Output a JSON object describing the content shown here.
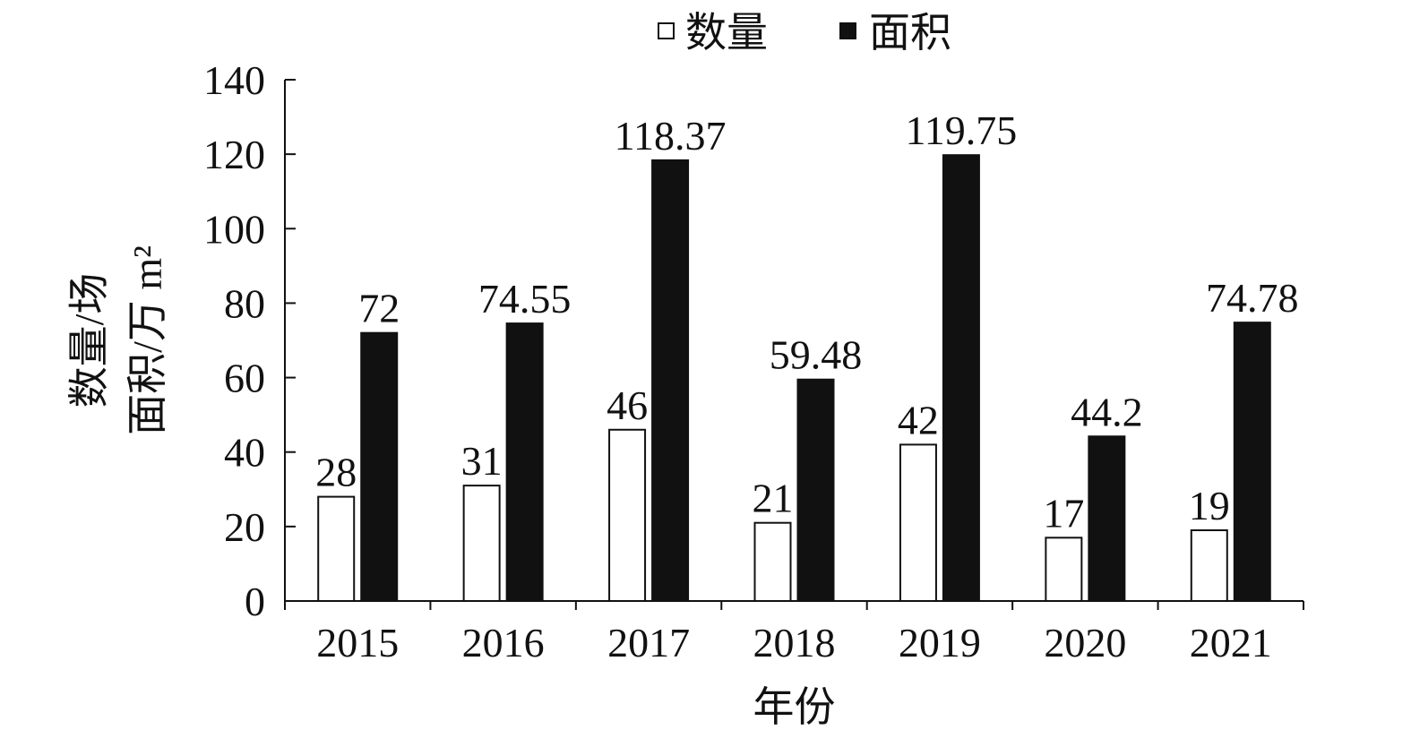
{
  "chart_data": {
    "type": "bar",
    "categories": [
      "2015",
      "2016",
      "2017",
      "2018",
      "2019",
      "2020",
      "2021"
    ],
    "series": [
      {
        "name": "数量",
        "values": [
          28,
          31,
          46,
          21,
          42,
          17,
          19
        ],
        "labels": [
          "28",
          "31",
          "46",
          "21",
          "42",
          "17",
          "19"
        ],
        "fill": "#ffffff",
        "stroke": "#111111"
      },
      {
        "name": "面积",
        "values": [
          72,
          74.55,
          118.37,
          59.48,
          119.75,
          44.2,
          74.78
        ],
        "labels": [
          "72",
          "74.55",
          "118.37",
          "59.48",
          "119.75",
          "44.2",
          "74.78"
        ],
        "fill": "#111111",
        "stroke": "#111111"
      }
    ],
    "xlabel": "年份",
    "ylabel_lines": [
      "数量/场",
      "面积/万 m²"
    ],
    "ylim": [
      0,
      140
    ],
    "yticks": [
      0,
      20,
      40,
      60,
      80,
      100,
      120,
      140
    ],
    "ytick_labels": [
      "0",
      "20",
      "40",
      "60",
      "80",
      "100",
      "120",
      "140"
    ],
    "grid": false,
    "legend_position": "top-center"
  }
}
